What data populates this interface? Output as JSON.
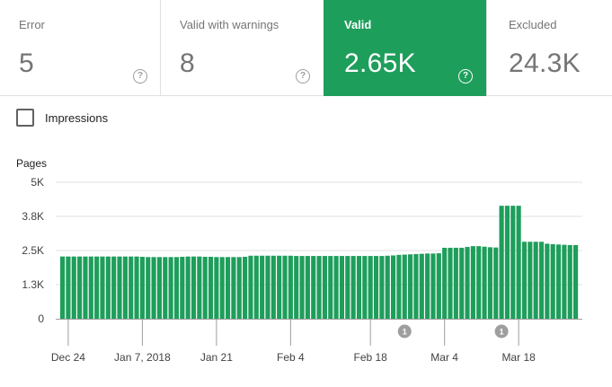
{
  "cards": [
    {
      "label": "Error",
      "value": "5",
      "help": "?"
    },
    {
      "label": "Valid with warnings",
      "value": "8",
      "help": "?"
    },
    {
      "label": "Valid",
      "value": "2.65K",
      "help": "?"
    },
    {
      "label": "Excluded",
      "value": "24.3K"
    }
  ],
  "impressions_label": "Impressions",
  "colors": {
    "valid": "#1e9e5b",
    "grid": "#e0e0e0",
    "marker": "#9e9e9e"
  },
  "chart_data": {
    "type": "bar",
    "ylabel": "Pages",
    "ylim": [
      0,
      5000
    ],
    "yticks": [
      {
        "value": 0,
        "label": "0"
      },
      {
        "value": 1250,
        "label": "1.3K"
      },
      {
        "value": 2500,
        "label": "2.5K"
      },
      {
        "value": 3750,
        "label": "3.8K"
      },
      {
        "value": 5000,
        "label": "5K"
      }
    ],
    "series": [
      {
        "values": [
          2280,
          2280,
          2280,
          2280,
          2280,
          2280,
          2280,
          2280,
          2280,
          2280,
          2280,
          2280,
          2280,
          2280,
          2270,
          2260,
          2260,
          2260,
          2260,
          2260,
          2260,
          2270,
          2280,
          2280,
          2280,
          2270,
          2270,
          2260,
          2260,
          2260,
          2260,
          2260,
          2270,
          2310,
          2310,
          2310,
          2310,
          2310,
          2310,
          2310,
          2310,
          2300,
          2300,
          2300,
          2300,
          2300,
          2300,
          2300,
          2300,
          2300,
          2300,
          2300,
          2300,
          2300,
          2300,
          2300,
          2300,
          2310,
          2320,
          2340,
          2350,
          2360,
          2370,
          2380,
          2390,
          2390,
          2400,
          2600,
          2600,
          2600,
          2600,
          2630,
          2660,
          2660,
          2640,
          2620,
          2610,
          4140,
          4140,
          4140,
          4140,
          2820,
          2820,
          2820,
          2820,
          2750,
          2730,
          2720,
          2710,
          2700,
          2700
        ]
      }
    ],
    "x_tick_labels": [
      "Dec 24",
      "Jan 7, 2018",
      "Jan 21",
      "Feb 4",
      "Feb 18",
      "Mar 4",
      "Mar 18"
    ],
    "annotations": [
      {
        "label": "1",
        "x_index": 60
      },
      {
        "label": "1",
        "x_index": 77
      }
    ]
  }
}
